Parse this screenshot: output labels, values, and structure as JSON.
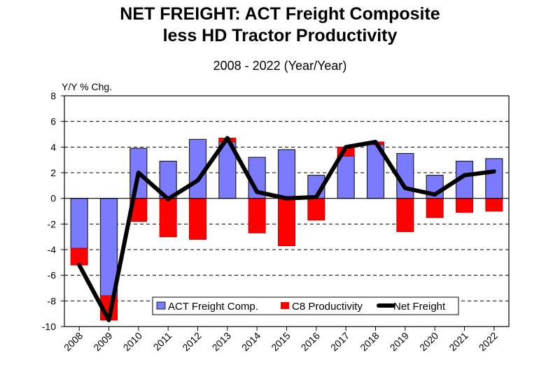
{
  "chart_data": {
    "type": "bar",
    "title_line1": "NET FREIGHT:  ACT Freight Composite",
    "title_line2": "less HD Tractor Productivity",
    "subtitle": "2008 - 2022 (Year/Year)",
    "ylabel": "Y/Y % Chg.",
    "ylim": [
      -10,
      8
    ],
    "yticks": [
      8,
      6,
      4,
      2,
      0,
      -2,
      -4,
      -6,
      -8,
      -10
    ],
    "grid": "horizontal dashed",
    "legend_position": "bottom-center",
    "categories": [
      "2008",
      "2009",
      "2010",
      "2011",
      "2012",
      "2013",
      "2014",
      "2015",
      "2016",
      "2017",
      "2018",
      "2019",
      "2020",
      "2021",
      "2022"
    ],
    "series": [
      {
        "name": "ACT Freight Comp.",
        "kind": "bar",
        "color": "#7b7bff",
        "values": [
          -3.9,
          -7.6,
          3.9,
          2.9,
          4.6,
          4.4,
          3.2,
          3.8,
          1.8,
          3.3,
          4.2,
          3.5,
          1.8,
          2.9,
          3.1
        ]
      },
      {
        "name": "C8 Productivity",
        "kind": "bar",
        "color": "#ff0000",
        "values": [
          -1.3,
          -1.9,
          -1.8,
          -3.0,
          -3.2,
          0.3,
          -2.7,
          -3.7,
          -1.7,
          0.7,
          0.2,
          -2.6,
          -1.5,
          -1.1,
          -1.0
        ]
      },
      {
        "name": "Net Freight",
        "kind": "line",
        "color": "#000000",
        "values": [
          -5.2,
          -9.5,
          2.0,
          -0.05,
          1.4,
          4.7,
          0.5,
          0.0,
          0.1,
          4.0,
          4.4,
          0.8,
          0.3,
          1.8,
          2.1
        ]
      }
    ]
  }
}
